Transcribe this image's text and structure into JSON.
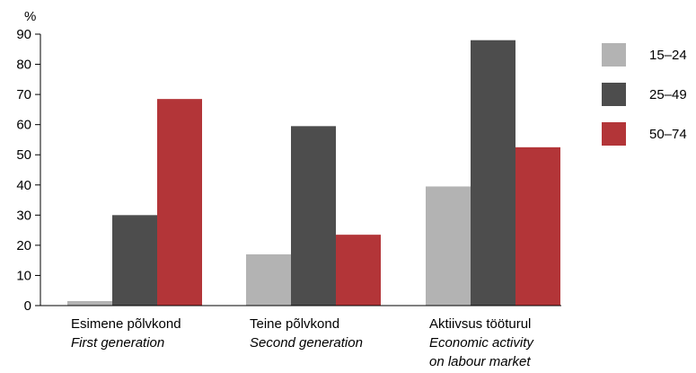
{
  "chart_data": {
    "type": "bar",
    "ylabel": "%",
    "ylim": [
      0,
      90
    ],
    "yticks": [
      0,
      10,
      20,
      30,
      40,
      50,
      60,
      70,
      80,
      90
    ],
    "grid": false,
    "legend_position": "right",
    "categories": [
      {
        "line1": "Esimene põlvkond",
        "line2": "First generation",
        "line3": ""
      },
      {
        "line1": "Teine põlvkond",
        "line2": "Second generation",
        "line3": ""
      },
      {
        "line1": "Aktiivsus tööturul",
        "line2": "Economic activity",
        "line3": "on labour market"
      }
    ],
    "series": [
      {
        "name": "15–24",
        "color": "#b3b3b3",
        "values": [
          1.5,
          17,
          39.5
        ]
      },
      {
        "name": "25–49",
        "color": "#4d4d4d",
        "values": [
          30,
          59.5,
          88
        ]
      },
      {
        "name": "50–74",
        "color": "#b33538",
        "values": [
          68.5,
          23.5,
          52.5
        ]
      }
    ]
  }
}
